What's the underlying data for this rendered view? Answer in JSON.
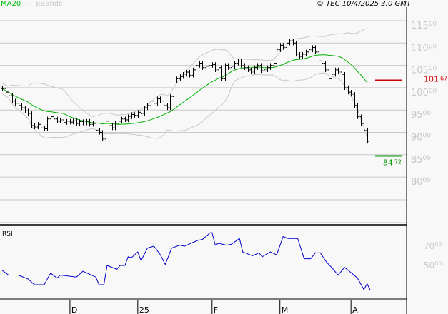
{
  "header": {
    "legend_ma": "MA20",
    "legend_bb": "BBands",
    "copyright": "© TEC 10/4/2025 3:0 GMT"
  },
  "colors": {
    "ma": "#00b000",
    "bb": "#c8c8c8",
    "bars": "#000000",
    "rsi": "#0000cc",
    "resistance": "#cc0000",
    "support": "#009900",
    "grid": "#c8c8c8",
    "axis_text": "#c8c8c8"
  },
  "chart_data": [
    {
      "type": "ohlc",
      "title": "Price",
      "ylim": [
        7500,
        11500
      ],
      "y_ticks": [
        {
          "v": 11500,
          "main": "115",
          "sub": "00"
        },
        {
          "v": 11000,
          "main": "110",
          "sub": "00"
        },
        {
          "v": 10500,
          "main": "105",
          "sub": "00"
        },
        {
          "v": 10000,
          "main": "100",
          "sub": "00"
        },
        {
          "v": 9500,
          "main": "95",
          "sub": "00"
        },
        {
          "v": 9000,
          "main": "90",
          "sub": "00"
        },
        {
          "v": 8500,
          "main": "85",
          "sub": "00"
        },
        {
          "v": 8000,
          "main": "80",
          "sub": "00"
        }
      ],
      "x_labels": [
        {
          "bar": 21,
          "label": "D"
        },
        {
          "bar": 42,
          "label": "25"
        },
        {
          "bar": 65,
          "label": "F"
        },
        {
          "bar": 86,
          "label": "M"
        },
        {
          "bar": 108,
          "label": "A"
        }
      ],
      "closes": [
        9980,
        9900,
        9820,
        9700,
        9650,
        9600,
        9550,
        9480,
        9420,
        9150,
        9120,
        9180,
        9100,
        9080,
        9300,
        9350,
        9300,
        9250,
        9280,
        9220,
        9250,
        9230,
        9260,
        9200,
        9240,
        9210,
        9250,
        9180,
        9200,
        9050,
        9000,
        8850,
        9250,
        9150,
        9100,
        9200,
        9250,
        9300,
        9280,
        9350,
        9400,
        9380,
        9450,
        9420,
        9550,
        9600,
        9700,
        9650,
        9750,
        9700,
        9600,
        9550,
        9800,
        10150,
        10200,
        10250,
        10300,
        10350,
        10280,
        10400,
        10500,
        10550,
        10450,
        10480,
        10500,
        10520,
        10400,
        10450,
        10200,
        10500,
        10450,
        10480,
        10550,
        10600,
        10500,
        10450,
        10400,
        10350,
        10450,
        10500,
        10380,
        10400,
        10450,
        10500,
        10550,
        10850,
        10950,
        10900,
        11000,
        11050,
        11000,
        10750,
        10700,
        10750,
        10800,
        10850,
        10900,
        10800,
        10600,
        10550,
        10400,
        10200,
        10300,
        10400,
        10350,
        10300,
        10000,
        9900,
        9850,
        9600,
        9350,
        9200,
        9050,
        8800
      ],
      "ma_period": 20,
      "levels": {
        "resistance": {
          "value": 10167,
          "main": "101",
          "sub": "67"
        },
        "support": {
          "value": 8472,
          "main": "84",
          "sub": "72"
        }
      }
    },
    {
      "type": "line",
      "title": "RSI",
      "y_ticks": [
        {
          "v": 70,
          "main": "70",
          "sub": "00"
        },
        {
          "v": 50,
          "main": "50",
          "sub": "00"
        }
      ],
      "points": [
        [
          0,
          45
        ],
        [
          2,
          40
        ],
        [
          5,
          40
        ],
        [
          8,
          36
        ],
        [
          10,
          30
        ],
        [
          13,
          30
        ],
        [
          15,
          42
        ],
        [
          17,
          37
        ],
        [
          18,
          40
        ],
        [
          23,
          38
        ],
        [
          25,
          44
        ],
        [
          29,
          38
        ],
        [
          30,
          30
        ],
        [
          31.5,
          30
        ],
        [
          32.5,
          50
        ],
        [
          35.5,
          46
        ],
        [
          36.5,
          50
        ],
        [
          38,
          50
        ],
        [
          39,
          59
        ],
        [
          40,
          58
        ],
        [
          42,
          64
        ],
        [
          43,
          55
        ],
        [
          45,
          68
        ],
        [
          47,
          70
        ],
        [
          49,
          61
        ],
        [
          50.5,
          51
        ],
        [
          52.5,
          68
        ],
        [
          55,
          71
        ],
        [
          56.5,
          70
        ],
        [
          60.5,
          76
        ],
        [
          62,
          77
        ],
        [
          64.5,
          84
        ],
        [
          65,
          84
        ],
        [
          66,
          71
        ],
        [
          67,
          73
        ],
        [
          69.5,
          71
        ],
        [
          71,
          72
        ],
        [
          73.5,
          78
        ],
        [
          74.5,
          64
        ],
        [
          77.5,
          60
        ],
        [
          79.5,
          63
        ],
        [
          80.5,
          59
        ],
        [
          83,
          64
        ],
        [
          85,
          61
        ],
        [
          87,
          80
        ],
        [
          88.5,
          78
        ],
        [
          91.5,
          78
        ],
        [
          93.5,
          57
        ],
        [
          95.5,
          57
        ],
        [
          97,
          63
        ],
        [
          98.5,
          63
        ],
        [
          100.5,
          53
        ],
        [
          102,
          48
        ],
        [
          104,
          40
        ],
        [
          106,
          48
        ],
        [
          107.5,
          44
        ],
        [
          110,
          37
        ],
        [
          112,
          25
        ],
        [
          113,
          31
        ],
        [
          114,
          24
        ]
      ]
    }
  ]
}
